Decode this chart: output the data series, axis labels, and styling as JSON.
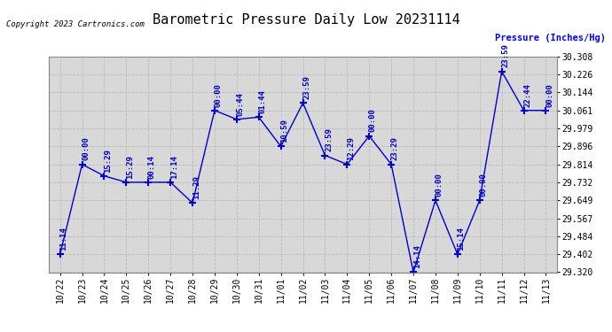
{
  "title": "Barometric Pressure Daily Low 20231114",
  "ylabel": "Pressure (Inches/Hg)",
  "copyright": "Copyright 2023 Cartronics.com",
  "line_color": "#0000cc",
  "background_color": "#ffffff",
  "plot_bg_color": "#d8d8d8",
  "grid_color": "#bbbbbb",
  "ylim": [
    29.32,
    30.308
  ],
  "yticks": [
    29.32,
    29.402,
    29.484,
    29.567,
    29.649,
    29.732,
    29.814,
    29.896,
    29.979,
    30.061,
    30.144,
    30.226,
    30.308
  ],
  "dates": [
    "10/22",
    "10/23",
    "10/24",
    "10/25",
    "10/26",
    "10/27",
    "10/28",
    "10/29",
    "10/30",
    "10/31",
    "11/01",
    "11/02",
    "11/03",
    "11/04",
    "11/05",
    "11/06",
    "11/07",
    "11/08",
    "11/09",
    "11/10",
    "11/11",
    "11/12",
    "11/13"
  ],
  "x_indices": [
    0,
    1,
    2,
    3,
    4,
    5,
    6,
    7,
    8,
    9,
    10,
    11,
    12,
    13,
    14,
    15,
    16,
    17,
    18,
    19,
    20,
    21,
    22
  ],
  "values": [
    29.402,
    29.814,
    29.761,
    29.732,
    29.732,
    29.732,
    29.637,
    30.061,
    30.02,
    30.03,
    29.896,
    30.095,
    29.855,
    29.814,
    29.944,
    29.814,
    29.32,
    29.649,
    29.402,
    29.649,
    30.24,
    30.061,
    30.061
  ],
  "time_labels": [
    "11:14",
    "00:00",
    "15:29",
    "15:29",
    "00:14",
    "17:14",
    "11:29",
    "00:00",
    "05:44",
    "01:44",
    "10:59",
    "23:59",
    "23:59",
    "12:29",
    "00:00",
    "23:29",
    "14:14",
    "00:00",
    "15:14",
    "00:00",
    "23:59",
    "22:44",
    "00:00"
  ],
  "figsize": [
    6.9,
    3.75
  ],
  "dpi": 100
}
